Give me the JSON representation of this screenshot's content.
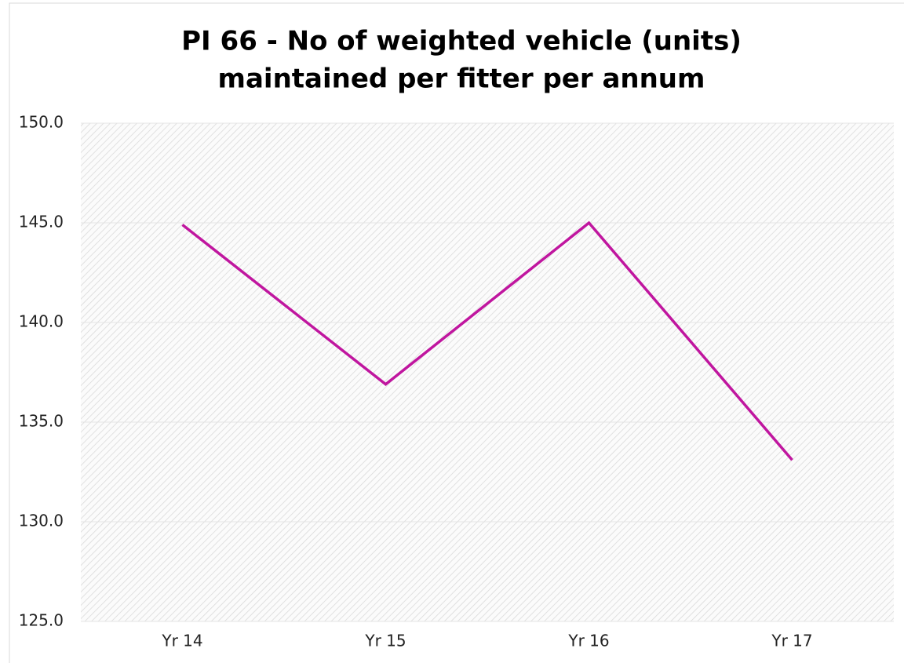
{
  "chart_data": {
    "type": "line",
    "title": [
      "PI 66 - No of weighted vehicle (units)",
      "maintained per fitter per annum"
    ],
    "categories": [
      "Yr 14",
      "Yr 15",
      "Yr 16",
      "Yr 17"
    ],
    "series": [
      {
        "color": "#c0169f",
        "values": [
          144.9,
          136.9,
          145.0,
          133.1
        ]
      }
    ],
    "ylim": [
      125,
      150
    ],
    "yticks": [
      {
        "value": 125,
        "label": "125.0"
      },
      {
        "value": 130,
        "label": "130.0"
      },
      {
        "value": 135,
        "label": "135.0"
      },
      {
        "value": 140,
        "label": "140.0"
      },
      {
        "value": 145,
        "label": "145.0"
      },
      {
        "value": 150,
        "label": "150.0"
      }
    ],
    "grid": true
  }
}
